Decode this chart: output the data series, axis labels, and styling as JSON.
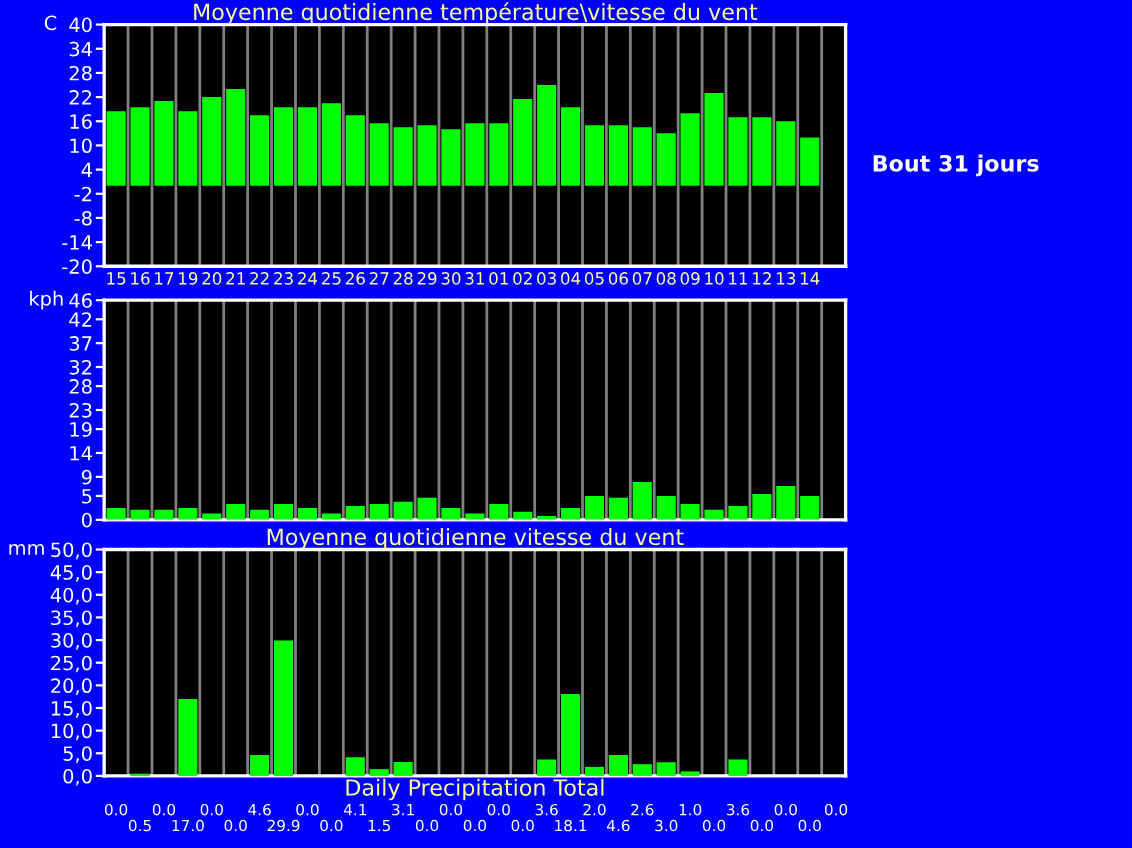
{
  "chart_data": [
    {
      "type": "bar",
      "title": "Moyenne quotidienne température\\vitesse du vent",
      "ylabel": "C",
      "categories": [
        "15",
        "16",
        "17",
        "19",
        "20",
        "21",
        "22",
        "23",
        "24",
        "25",
        "26",
        "27",
        "28",
        "29",
        "30",
        "31",
        "01",
        "02",
        "03",
        "04",
        "05",
        "06",
        "07",
        "08",
        "09",
        "10",
        "11",
        "12",
        "13",
        "14",
        null
      ],
      "series": [
        {
          "color": "#00ff00",
          "values": [
            18.5,
            19.5,
            21,
            18.5,
            22,
            24,
            17.5,
            19.5,
            19.5,
            20.5,
            17.5,
            15.5,
            14.5,
            15,
            14,
            15.5,
            15.5,
            21.5,
            25,
            19.5,
            15,
            15,
            14.5,
            13,
            18,
            23,
            17,
            17,
            16,
            12,
            null
          ]
        }
      ],
      "ylim": [
        -20,
        40
      ],
      "yticks": [
        -20,
        -14,
        -8,
        -2,
        4,
        10,
        16,
        22,
        28,
        34,
        40
      ],
      "grid": "x",
      "annotations": [
        {
          "text": "Bout 31 jours"
        }
      ]
    },
    {
      "type": "bar",
      "ylabel": "kph",
      "categories": [
        "15",
        "16",
        "17",
        "19",
        "20",
        "21",
        "22",
        "23",
        "24",
        "25",
        "26",
        "27",
        "28",
        "29",
        "30",
        "31",
        "01",
        "02",
        "03",
        "04",
        "05",
        "06",
        "07",
        "08",
        "09",
        "10",
        "11",
        "12",
        "13",
        "14",
        null
      ],
      "series": [
        {
          "color": "#00ff00",
          "values": [
            2.5,
            2.1,
            2.1,
            2.5,
            1.3,
            3.3,
            2.1,
            3.3,
            2.5,
            1.3,
            2.9,
            3.3,
            3.8,
            4.6,
            2.5,
            1.3,
            3.3,
            1.7,
            0.8,
            2.5,
            5.0,
            4.6,
            7.9,
            5.0,
            3.3,
            2.1,
            2.9,
            5.4,
            7.1,
            5.0,
            null
          ]
        }
      ],
      "ylim": [
        0,
        46
      ],
      "yticks": [
        0,
        5,
        9,
        14,
        19,
        23,
        28,
        32,
        37,
        42,
        46
      ],
      "grid": "x",
      "tick_labels": "y"
    },
    {
      "type": "bar",
      "title": "Moyenne quotidienne vitesse du vent",
      "ylabel": "mm",
      "xlabel": "Daily Precipitation Total",
      "categories": [
        "15",
        "16",
        "17",
        "19",
        "20",
        "21",
        "22",
        "23",
        "24",
        "25",
        "26",
        "27",
        "28",
        "29",
        "30",
        "31",
        "01",
        "02",
        "03",
        "04",
        "05",
        "06",
        "07",
        "08",
        "09",
        "10",
        "11",
        "12",
        "13",
        "14",
        null
      ],
      "series": [
        {
          "color": "#00ff00",
          "values": [
            0.0,
            0.5,
            0.0,
            17.0,
            0.0,
            0.0,
            4.6,
            29.9,
            0.0,
            0.0,
            4.1,
            1.5,
            3.1,
            0.0,
            0.0,
            0.0,
            0.0,
            0.0,
            3.6,
            18.1,
            2.0,
            4.6,
            2.6,
            3.0,
            1.0,
            0.0,
            3.6,
            0.0,
            0.0,
            0.0,
            0.0
          ],
          "value_labels": [
            "0.0",
            "0.5",
            "0.0",
            "17.0",
            "0.0",
            "0.0",
            "4.6",
            "29.9",
            "0.0",
            "0.0",
            "4.1",
            "1.5",
            "3.1",
            "0.0",
            "0.0",
            "0.0",
            "0.0",
            "0.0",
            "3.6",
            "18.1",
            "2.0",
            "4.6",
            "2.6",
            "3.0",
            "1.0",
            "0.0",
            "3.6",
            "0.0",
            "0.0",
            "0.0",
            "0.0"
          ]
        }
      ],
      "ylim": [
        0,
        50
      ],
      "yticks": [
        {
          "value": 0,
          "label": "0,0"
        },
        {
          "value": 5,
          "label": "5,0"
        },
        {
          "value": 10,
          "label": "10,0"
        },
        {
          "value": 15,
          "label": "15,0"
        },
        {
          "value": 20,
          "label": "20,0"
        },
        {
          "value": 25,
          "label": "25,0"
        },
        {
          "value": 30,
          "label": "30,0"
        },
        {
          "value": 35,
          "label": "35,0"
        },
        {
          "value": 40,
          "label": "40,0"
        },
        {
          "value": 45,
          "label": "45,0"
        },
        {
          "value": 50,
          "label": "50,0"
        }
      ],
      "grid": "x",
      "tick_labels": "y"
    }
  ]
}
